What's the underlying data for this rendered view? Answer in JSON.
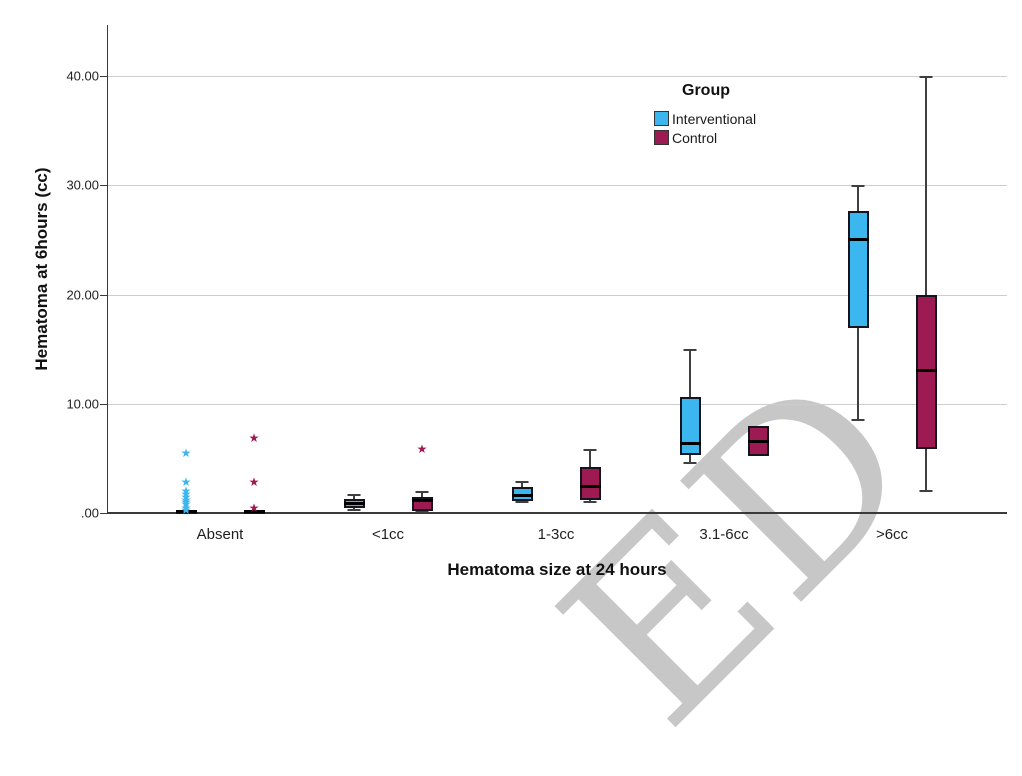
{
  "watermark": {
    "text": "ED",
    "color": "#c7c7c7"
  },
  "chart_data": {
    "type": "boxplot",
    "xlabel": "Hematoma size at 24 hours",
    "ylabel": "Hematoma at 6hours (cc)",
    "categories": [
      "Absent",
      "<1cc",
      "1-3cc",
      "3.1-6cc",
      ">6cc"
    ],
    "y_ticks": [
      ".00",
      "10.00",
      "20.00",
      "30.00",
      "40.00"
    ],
    "y_tick_values": [
      0,
      10,
      20,
      30,
      40
    ],
    "ylim": [
      0,
      44.7
    ],
    "grid": "horizontal",
    "legend": {
      "title": "Group",
      "position": "top-right-inside",
      "entries": [
        {
          "label": "Interventional",
          "color": "#3cb6ee"
        },
        {
          "label": "Control",
          "color": "#9e1a52"
        }
      ]
    },
    "series": [
      {
        "name": "Interventional",
        "color": "#3cb6ee",
        "boxes": [
          {
            "category": "Absent",
            "low": null,
            "q1": 0,
            "median": 0.1,
            "q3": 0.3,
            "high": null,
            "outliers": [
              5.5,
              2.8,
              2.0,
              1.7,
              1.5,
              1.2,
              1.0,
              0.8,
              0.5,
              0.3
            ]
          },
          {
            "category": "<1cc",
            "low": 0.3,
            "q1": 0.5,
            "median": 0.9,
            "q3": 1.3,
            "high": 1.7,
            "outliers": []
          },
          {
            "category": "1-3cc",
            "low": 1.0,
            "q1": 1.1,
            "median": 1.6,
            "q3": 2.4,
            "high": 2.9,
            "outliers": []
          },
          {
            "category": "3.1-6cc",
            "low": 4.6,
            "q1": 5.3,
            "median": 6.4,
            "q3": 10.6,
            "high": 15.0,
            "outliers": []
          },
          {
            "category": ">6cc",
            "low": 8.5,
            "q1": 16.9,
            "median": 25.0,
            "q3": 27.6,
            "high": 30.0,
            "outliers": []
          }
        ]
      },
      {
        "name": "Control",
        "color": "#9e1a52",
        "boxes": [
          {
            "category": "Absent",
            "low": null,
            "q1": 0,
            "median": 0.1,
            "q3": 0.3,
            "high": null,
            "outliers": [
              6.9,
              2.8,
              0.5
            ]
          },
          {
            "category": "<1cc",
            "low": 0.1,
            "q1": 0.15,
            "median": 1.1,
            "q3": 1.5,
            "high": 2.0,
            "outliers": [
              5.9
            ]
          },
          {
            "category": "1-3cc",
            "low": 1.0,
            "q1": 1.2,
            "median": 2.4,
            "q3": 4.2,
            "high": 5.9,
            "outliers": []
          },
          {
            "category": "3.1-6cc",
            "low": 5.2,
            "q1": 5.2,
            "median": 6.5,
            "q3": 8.0,
            "high": 8.0,
            "outliers": []
          },
          {
            "category": ">6cc",
            "low": 2.0,
            "q1": 5.9,
            "median": 13.0,
            "q3": 20.0,
            "high": 40.0,
            "outliers": []
          }
        ]
      }
    ]
  }
}
